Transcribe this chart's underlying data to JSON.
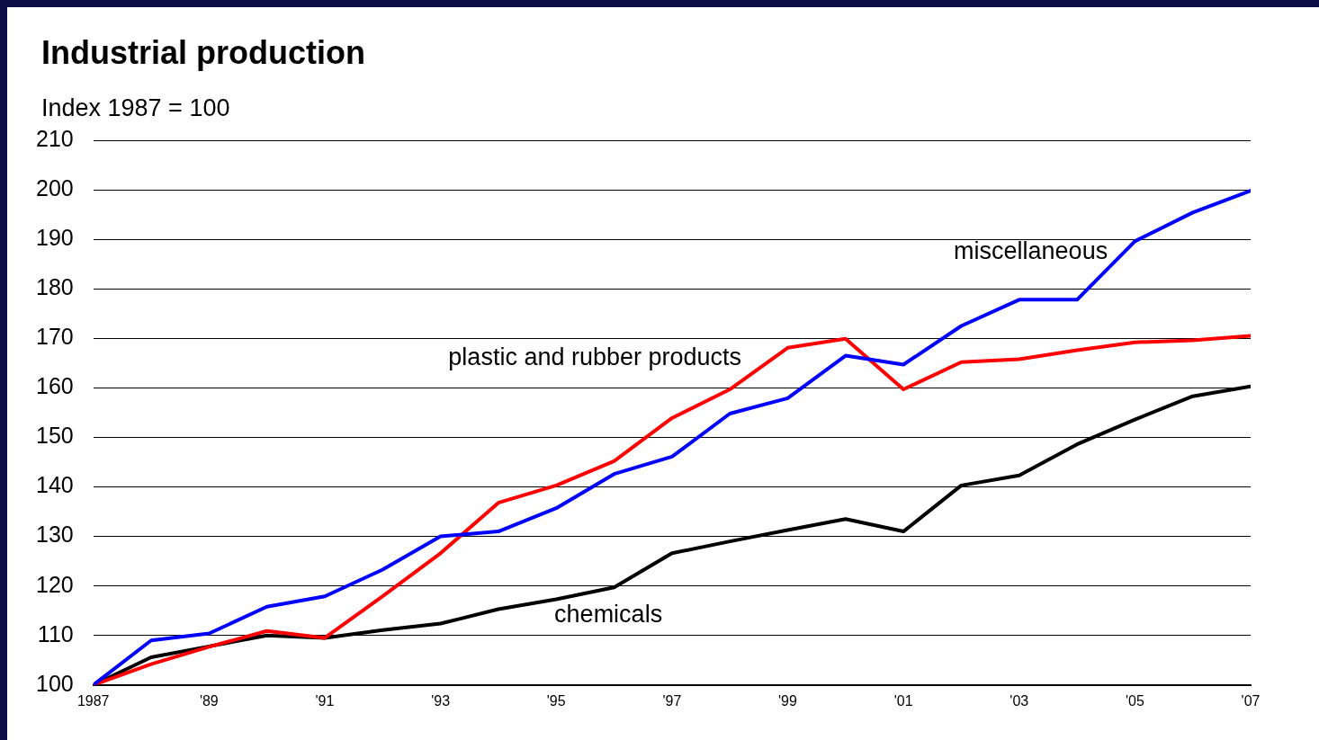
{
  "chart_data": {
    "type": "line",
    "title": "Industrial production",
    "ylabel": "Index 1987 = 100",
    "x": [
      1987,
      1988,
      1989,
      1990,
      1991,
      1992,
      1993,
      1994,
      1995,
      1996,
      1997,
      1998,
      1999,
      2000,
      2001,
      2002,
      2003,
      2004,
      2005,
      2006,
      2007
    ],
    "series": [
      {
        "name": "miscellaneous",
        "color": "#0000ff",
        "values": [
          100,
          109,
          110.4,
          115.8,
          117.9,
          123.3,
          130,
          131,
          135.7,
          142.6,
          146.1,
          154.8,
          157.9,
          166.5,
          164.7,
          172.5,
          177.8,
          177.8,
          189.6,
          195.4,
          199.8
        ]
      },
      {
        "name": "plastic and rubber products",
        "color": "#ff0000",
        "values": [
          100,
          104.2,
          107.7,
          110.9,
          109.5,
          117.9,
          126.6,
          136.8,
          140.3,
          145.2,
          153.9,
          159.7,
          168.1,
          169.9,
          159.7,
          165.2,
          165.8,
          167.6,
          169.2,
          169.6,
          170.5
        ]
      },
      {
        "name": "chemicals",
        "color": "#000000",
        "values": [
          100,
          105.6,
          107.8,
          110,
          109.5,
          111.1,
          112.4,
          115.3,
          117.3,
          119.7,
          126.6,
          129,
          131.3,
          133.5,
          131,
          140.3,
          142.3,
          148.6,
          153.6,
          158.3,
          160.3
        ]
      }
    ],
    "xlim": [
      1987,
      2007
    ],
    "xticks": [
      1987,
      {
        "value": 1989,
        "label": "'89"
      },
      {
        "value": 1991,
        "label": "'91"
      },
      {
        "value": 1993,
        "label": "'93"
      },
      {
        "value": 1995,
        "label": "'95"
      },
      {
        "value": 1997,
        "label": "'97"
      },
      {
        "value": 1999,
        "label": "'99"
      },
      {
        "value": 2001,
        "label": "'01"
      },
      {
        "value": 2003,
        "label": "'03"
      },
      {
        "value": 2005,
        "label": "'05"
      },
      {
        "value": 2007,
        "label": "'07"
      }
    ],
    "ylim": [
      100,
      210
    ],
    "yticks": [
      100,
      110,
      120,
      130,
      140,
      150,
      160,
      170,
      180,
      190,
      200,
      210
    ],
    "grid": "y",
    "legend": false,
    "marker": "none",
    "line_style": "solid"
  }
}
